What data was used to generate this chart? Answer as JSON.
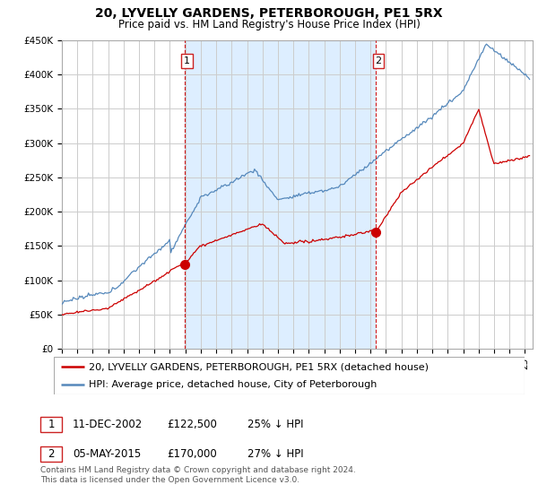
{
  "title": "20, LYVELLY GARDENS, PETERBOROUGH, PE1 5RX",
  "subtitle": "Price paid vs. HM Land Registry's House Price Index (HPI)",
  "ylim": [
    0,
    450000
  ],
  "xlim_start": 1995,
  "xlim_end": 2025.5,
  "sale1_year": 2002.94,
  "sale1_price": 122500,
  "sale2_year": 2015.35,
  "sale2_price": 170000,
  "legend_line1": "20, LYVELLY GARDENS, PETERBOROUGH, PE1 5RX (detached house)",
  "legend_line2": "HPI: Average price, detached house, City of Peterborough",
  "row1_num": "1",
  "row1_date": "11-DEC-2002",
  "row1_price": "£122,500",
  "row1_pct": "25% ↓ HPI",
  "row2_num": "2",
  "row2_date": "05-MAY-2015",
  "row2_price": "£170,000",
  "row2_pct": "27% ↓ HPI",
  "footnote_line1": "Contains HM Land Registry data © Crown copyright and database right 2024.",
  "footnote_line2": "This data is licensed under the Open Government Licence v3.0.",
  "red_color": "#cc0000",
  "blue_color": "#5588bb",
  "shade_color": "#ddeeff",
  "grid_color": "#cccccc",
  "bg_color": "#ffffff",
  "title_fontsize": 10,
  "subtitle_fontsize": 8.5,
  "tick_fontsize": 7.5,
  "legend_fontsize": 8,
  "table_fontsize": 8.5,
  "footnote_fontsize": 6.5
}
